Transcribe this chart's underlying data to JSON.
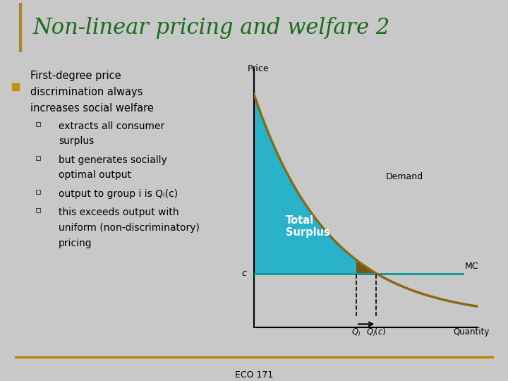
{
  "title": "Non-linear pricing and welfare 2",
  "title_color": "#1a6b1a",
  "title_fontsize": 22,
  "bg_color": "#c8c8c8",
  "border_color": "#b8860b",
  "bullet_color": "#c8900a",
  "text_color": "#000000",
  "footer_text": "ECO 171",
  "footer_line_color": "#b8860b",
  "demand_color": "#8B6914",
  "fill_blue": "#1ab0cc",
  "fill_brown": "#6b4a00",
  "mc_color": "#009999",
  "mc_label": "MC",
  "price_label": "Price",
  "demand_label": "Demand",
  "surplus_label": "Total\nSurplus",
  "c_label": "c",
  "q1_label": "Q_i",
  "q2_label": "Q_i(c)",
  "qty_label": "Quantity",
  "sub_bullet_texts": [
    [
      "extracts all consumer",
      "surplus"
    ],
    [
      "but generates socially",
      "optimal output"
    ],
    [
      "output to group i is Q",
      "(c)"
    ],
    [
      "this exceeds output with",
      "uniform (non-discriminatory)",
      "pricing"
    ]
  ]
}
